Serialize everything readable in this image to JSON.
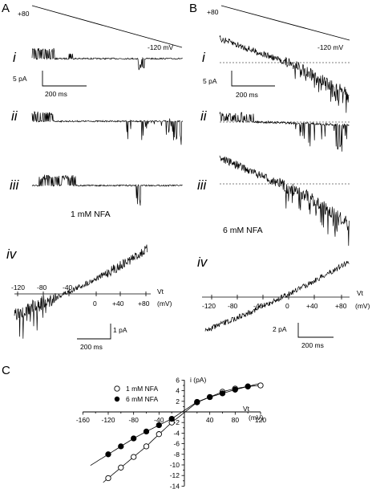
{
  "panels": {
    "A": {
      "letter": "A",
      "ramp_start": "+80",
      "ramp_end": "-120 mV",
      "trace_labels": [
        "i",
        "ii",
        "iii",
        "iv"
      ],
      "scalebar_current": "5 pA",
      "scalebar_time": "200 ms",
      "drug_label": "1 mM NFA",
      "iv_scalebar_current": "1 pA",
      "iv_scalebar_time": "200 ms",
      "iv_axis_label": "Vt",
      "iv_axis_unit": "(mV)",
      "iv_ticks": [
        "-120",
        "-80",
        "-40",
        "0",
        "+40",
        "+80"
      ]
    },
    "B": {
      "letter": "B",
      "ramp_start": "+80",
      "ramp_end": "-120 mV",
      "trace_labels": [
        "i",
        "ii",
        "iii",
        "iv"
      ],
      "scalebar_current": "5 pA",
      "scalebar_time": "200 ms",
      "drug_label": "6 mM NFA",
      "iv_scalebar_current": "2 pA",
      "iv_scalebar_time": "200 ms",
      "iv_axis_label": "Vt",
      "iv_axis_unit": "(mV)",
      "iv_ticks": [
        "-120",
        "-80",
        "-40",
        "0",
        "+40",
        "+80"
      ]
    },
    "C": {
      "letter": "C",
      "y_label": "i (pA)",
      "x_label": "Vt",
      "x_unit": "(mV)",
      "x_ticks": [
        "-160",
        "-120",
        "-80",
        "-40",
        "40",
        "80",
        "120"
      ],
      "y_ticks": [
        "6",
        "4",
        "2",
        "-2",
        "-4",
        "-6",
        "-8",
        "-10",
        "-12",
        "-14"
      ],
      "legend": [
        {
          "label": "1 mM NFA",
          "marker": "open-circle"
        },
        {
          "label": "6 mM NFA",
          "marker": "filled-circle"
        }
      ]
    }
  },
  "chart_data": {
    "type": "scatter",
    "xlabel": "Vt (mV)",
    "ylabel": "i (pA)",
    "xlim": [
      -160,
      120
    ],
    "ylim": [
      -14,
      6
    ],
    "x_ticks": [
      -160,
      -120,
      -80,
      -40,
      40,
      80,
      120
    ],
    "y_ticks": [
      6,
      4,
      2,
      -2,
      -4,
      -6,
      -8,
      -10,
      -12,
      -14
    ],
    "legend_position": "top-left",
    "series": [
      {
        "name": "1 mM NFA",
        "marker": "open",
        "x": [
          -120,
          -100,
          -80,
          -60,
          -40,
          -20,
          20,
          40,
          60,
          80,
          100,
          120
        ],
        "y": [
          -12.5,
          -10.5,
          -8.5,
          -6.5,
          -4.2,
          -2.0,
          1.8,
          2.8,
          3.8,
          4.4,
          4.8,
          5.0
        ]
      },
      {
        "name": "6 mM NFA",
        "marker": "filled",
        "x": [
          -120,
          -100,
          -80,
          -60,
          -40,
          -20,
          20,
          40,
          60,
          80,
          100
        ],
        "y": [
          -8.0,
          -6.5,
          -5.0,
          -3.7,
          -2.5,
          -1.3,
          1.9,
          2.8,
          3.5,
          4.2,
          4.8
        ]
      }
    ]
  }
}
